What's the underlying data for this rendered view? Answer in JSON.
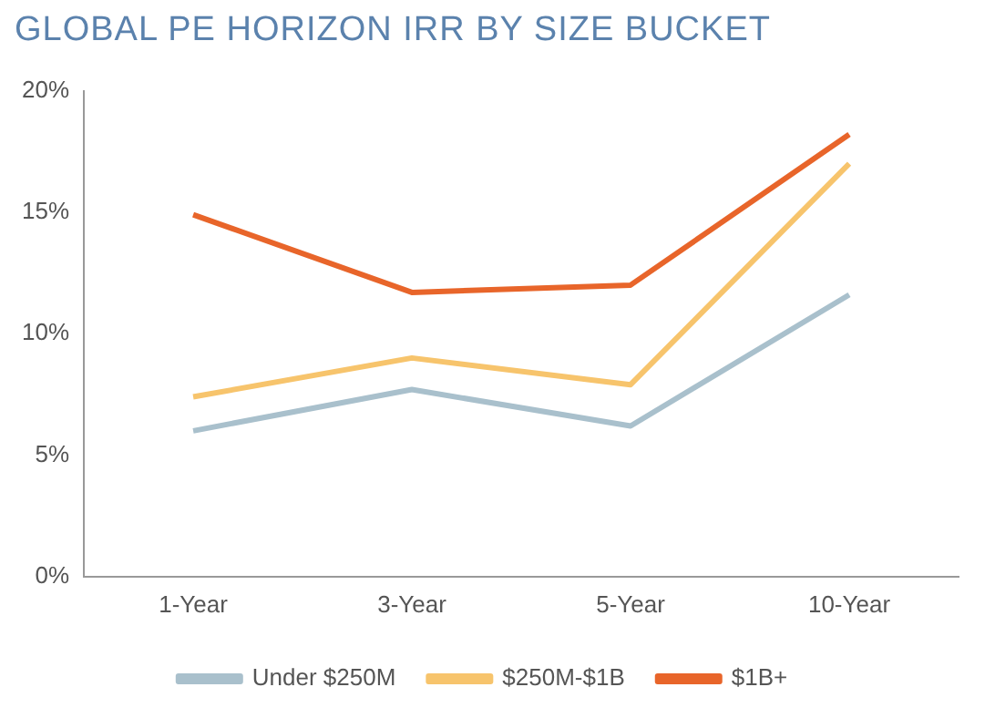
{
  "chart_data": {
    "type": "line",
    "title": "GLOBAL PE HORIZON IRR BY SIZE BUCKET",
    "categories": [
      "1-Year",
      "3-Year",
      "5-Year",
      "10-Year"
    ],
    "series": [
      {
        "name": "Under $250M",
        "color": "#a9c0cc",
        "values": [
          6.0,
          7.7,
          6.2,
          11.6
        ]
      },
      {
        "name": "$250M-$1B",
        "color": "#f7c46c",
        "values": [
          7.4,
          9.0,
          7.9,
          17.0
        ]
      },
      {
        "name": "$1B+",
        "color": "#e8652a",
        "values": [
          14.9,
          11.7,
          12.0,
          18.2
        ]
      }
    ],
    "ylim": [
      0,
      20
    ],
    "yticks": [
      {
        "value": 0,
        "label": "0%"
      },
      {
        "value": 5,
        "label": "5%"
      },
      {
        "value": 10,
        "label": "10%"
      },
      {
        "value": 15,
        "label": "15%"
      },
      {
        "value": 20,
        "label": "20%"
      }
    ],
    "grid": false,
    "legend": "bottom",
    "marker": "none",
    "line_style": "solid"
  }
}
